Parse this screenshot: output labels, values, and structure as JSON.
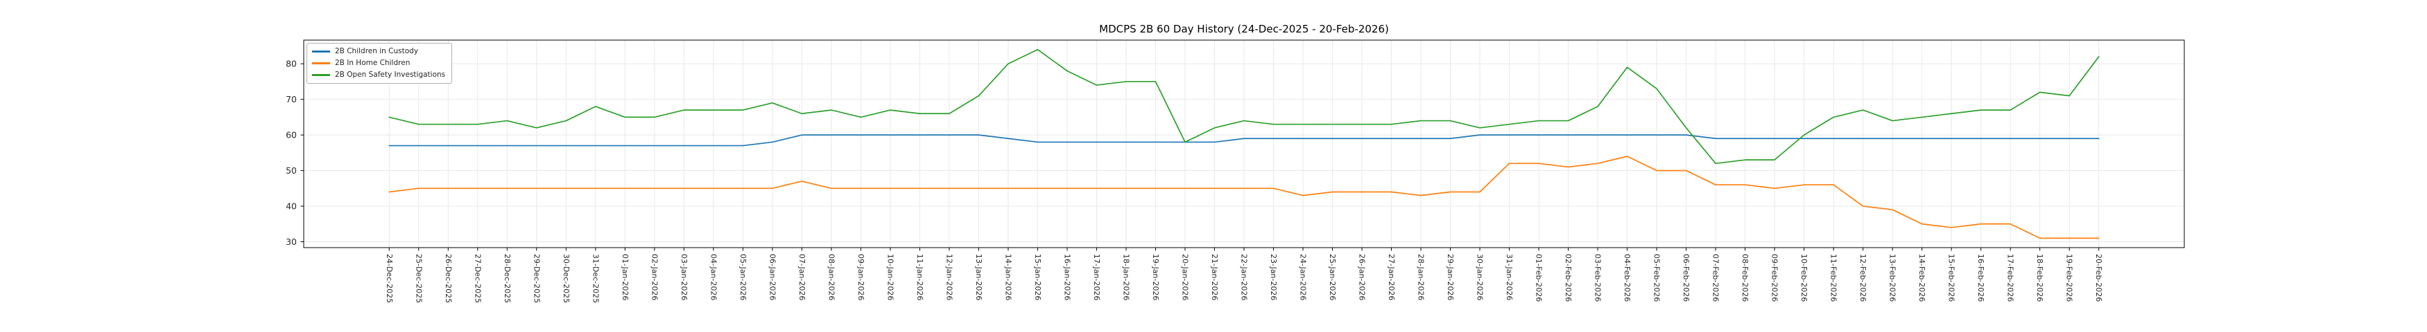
{
  "figure": {
    "title": "MDCPS 2B 60 Day History (24-Dec-2025 - 20-Feb-2026)"
  },
  "legend": {
    "position": "upper left",
    "items": [
      {
        "label": "2B Children in Custody",
        "color": "#1f77b4"
      },
      {
        "label": "2B In Home Children",
        "color": "#ff7f0e"
      },
      {
        "label": "2B Open Safety Investigations",
        "color": "#2ca02c"
      }
    ]
  },
  "axes": {
    "y_ticks": [
      30,
      40,
      50,
      60,
      70,
      80
    ],
    "grid_color": "#e6e6e6",
    "spine_color": "#000000",
    "tick_label_color": "#262626"
  },
  "chart_data": {
    "type": "line",
    "title": "MDCPS 2B 60 Day History (24-Dec-2025 - 20-Feb-2026)",
    "xlabel": "",
    "ylabel": "",
    "grid": true,
    "legend_position": "upper left",
    "y_tick_values": [
      30,
      40,
      50,
      60,
      70,
      80
    ],
    "x": [
      "24-Dec-2025",
      "25-Dec-2025",
      "26-Dec-2025",
      "27-Dec-2025",
      "28-Dec-2025",
      "29-Dec-2025",
      "30-Dec-2025",
      "31-Dec-2025",
      "01-Jan-2026",
      "02-Jan-2026",
      "03-Jan-2026",
      "04-Jan-2026",
      "05-Jan-2026",
      "06-Jan-2026",
      "07-Jan-2026",
      "08-Jan-2026",
      "09-Jan-2026",
      "10-Jan-2026",
      "11-Jan-2026",
      "12-Jan-2026",
      "13-Jan-2026",
      "14-Jan-2026",
      "15-Jan-2026",
      "16-Jan-2026",
      "17-Jan-2026",
      "18-Jan-2026",
      "19-Jan-2026",
      "20-Jan-2026",
      "21-Jan-2026",
      "22-Jan-2026",
      "23-Jan-2026",
      "24-Jan-2026",
      "25-Jan-2026",
      "26-Jan-2026",
      "27-Jan-2026",
      "28-Jan-2026",
      "29-Jan-2026",
      "30-Jan-2026",
      "31-Jan-2026",
      "01-Feb-2026",
      "02-Feb-2026",
      "03-Feb-2026",
      "04-Feb-2026",
      "05-Feb-2026",
      "06-Feb-2026",
      "07-Feb-2026",
      "08-Feb-2026",
      "09-Feb-2026",
      "10-Feb-2026",
      "11-Feb-2026",
      "12-Feb-2026",
      "13-Feb-2026",
      "14-Feb-2026",
      "15-Feb-2026",
      "16-Feb-2026",
      "17-Feb-2026",
      "18-Feb-2026",
      "19-Feb-2026",
      "20-Feb-2026"
    ],
    "series": [
      {
        "name": "2B Children in Custody",
        "color": "#1f77b4",
        "values": [
          57,
          57,
          57,
          57,
          57,
          57,
          57,
          57,
          57,
          57,
          57,
          57,
          57,
          58,
          60,
          60,
          60,
          60,
          60,
          60,
          60,
          59,
          58,
          58,
          58,
          58,
          58,
          58,
          58,
          59,
          59,
          59,
          59,
          59,
          59,
          59,
          59,
          60,
          60,
          60,
          60,
          60,
          60,
          60,
          60,
          59,
          59,
          59,
          59,
          59,
          59,
          59,
          59,
          59,
          59,
          59,
          59,
          59,
          59
        ]
      },
      {
        "name": "2B In Home Children",
        "color": "#ff7f0e",
        "values": [
          44,
          45,
          45,
          45,
          45,
          45,
          45,
          45,
          45,
          45,
          45,
          45,
          45,
          45,
          47,
          45,
          45,
          45,
          45,
          45,
          45,
          45,
          45,
          45,
          45,
          45,
          45,
          45,
          45,
          45,
          45,
          43,
          44,
          44,
          44,
          43,
          44,
          44,
          52,
          52,
          51,
          52,
          54,
          50,
          50,
          46,
          46,
          45,
          46,
          46,
          40,
          39,
          35,
          34,
          35,
          35,
          31,
          31,
          31
        ]
      },
      {
        "name": "2B Open Safety Investigations",
        "color": "#2ca02c",
        "values": [
          65,
          63,
          63,
          63,
          64,
          62,
          64,
          68,
          65,
          65,
          67,
          67,
          67,
          69,
          66,
          67,
          65,
          67,
          66,
          66,
          71,
          80,
          84,
          78,
          74,
          75,
          75,
          58,
          62,
          64,
          63,
          63,
          63,
          63,
          63,
          64,
          64,
          62,
          63,
          64,
          64,
          68,
          79,
          73,
          62,
          52,
          53,
          53,
          60,
          65,
          67,
          64,
          65,
          66,
          67,
          67,
          72,
          71,
          82
        ]
      }
    ]
  }
}
